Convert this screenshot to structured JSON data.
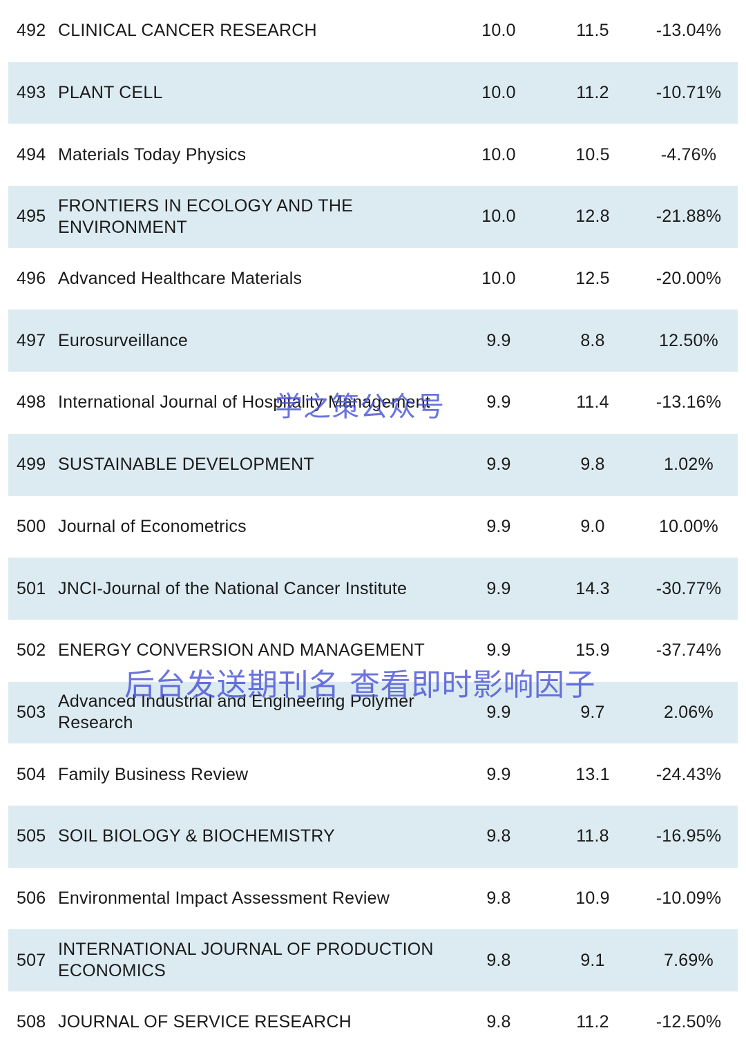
{
  "rows": [
    {
      "rank": "492",
      "name": "CLINICAL CANCER RESEARCH",
      "v2024": "10.0",
      "v2023": "11.5",
      "change": "-13.04%"
    },
    {
      "rank": "493",
      "name": "PLANT CELL",
      "v2024": "10.0",
      "v2023": "11.2",
      "change": "-10.71%"
    },
    {
      "rank": "494",
      "name": "Materials Today Physics",
      "v2024": "10.0",
      "v2023": "10.5",
      "change": "-4.76%"
    },
    {
      "rank": "495",
      "name": "FRONTIERS IN ECOLOGY AND THE ENVIRONMENT",
      "v2024": "10.0",
      "v2023": "12.8",
      "change": "-21.88%"
    },
    {
      "rank": "496",
      "name": "Advanced Healthcare Materials",
      "v2024": "10.0",
      "v2023": "12.5",
      "change": "-20.00%"
    },
    {
      "rank": "497",
      "name": "Eurosurveillance",
      "v2024": "9.9",
      "v2023": "8.8",
      "change": "12.50%"
    },
    {
      "rank": "498",
      "name": "International Journal of Hospitality Management",
      "v2024": "9.9",
      "v2023": "11.4",
      "change": "-13.16%"
    },
    {
      "rank": "499",
      "name": "SUSTAINABLE DEVELOPMENT",
      "v2024": "9.9",
      "v2023": "9.8",
      "change": "1.02%"
    },
    {
      "rank": "500",
      "name": "Journal of Econometrics",
      "v2024": "9.9",
      "v2023": "9.0",
      "change": "10.00%"
    },
    {
      "rank": "501",
      "name": "JNCI-Journal of the National Cancer Institute",
      "v2024": "9.9",
      "v2023": "14.3",
      "change": "-30.77%"
    },
    {
      "rank": "502",
      "name": "ENERGY CONVERSION AND MANAGEMENT",
      "v2024": "9.9",
      "v2023": "15.9",
      "change": "-37.74%"
    },
    {
      "rank": "503",
      "name": "Advanced Industrial and Engineering Polymer Research",
      "v2024": "9.9",
      "v2023": "9.7",
      "change": "2.06%"
    },
    {
      "rank": "504",
      "name": "Family Business Review",
      "v2024": "9.9",
      "v2023": "13.1",
      "change": "-24.43%"
    },
    {
      "rank": "505",
      "name": "SOIL BIOLOGY & BIOCHEMISTRY",
      "v2024": "9.8",
      "v2023": "11.8",
      "change": "-16.95%"
    },
    {
      "rank": "506",
      "name": "Environmental Impact Assessment Review",
      "v2024": "9.8",
      "v2023": "10.9",
      "change": "-10.09%"
    },
    {
      "rank": "507",
      "name": "INTERNATIONAL JOURNAL OF PRODUCTION ECONOMICS",
      "v2024": "9.8",
      "v2023": "9.1",
      "change": "7.69%"
    },
    {
      "rank": "508",
      "name": "JOURNAL OF SERVICE RESEARCH",
      "v2024": "9.8",
      "v2023": "11.2",
      "change": "-12.50%"
    }
  ],
  "watermarks": {
    "account": "学之策公众号",
    "prompt": "后台发送期刊名 查看即时影响因子"
  },
  "colors": {
    "row_shade": "#dcebf1",
    "watermark": "#4a55d8",
    "text": "#1a1a1a"
  }
}
